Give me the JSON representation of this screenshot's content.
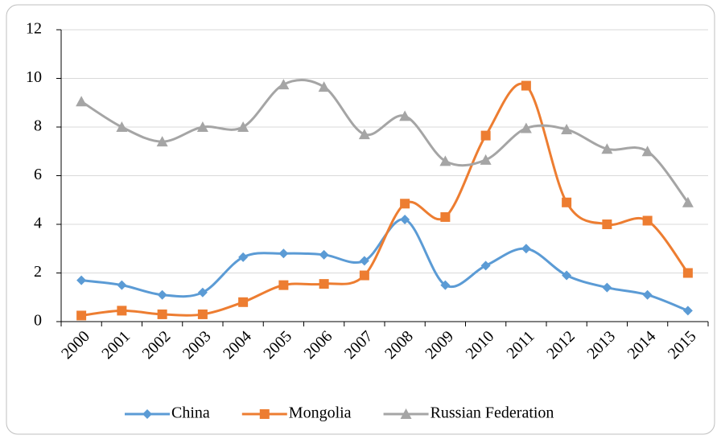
{
  "chart_data": {
    "type": "line",
    "categories": [
      "2000",
      "2001",
      "2002",
      "2003",
      "2004",
      "2005",
      "2006",
      "2007",
      "2008",
      "2009",
      "2010",
      "2011",
      "2012",
      "2013",
      "2014",
      "2015"
    ],
    "series": [
      {
        "name": "China",
        "color": "#5b9bd5",
        "marker": "diamond",
        "values": [
          1.7,
          1.5,
          1.1,
          1.2,
          2.65,
          2.8,
          2.75,
          2.5,
          4.2,
          1.5,
          2.3,
          3.0,
          1.9,
          1.4,
          1.1,
          0.45
        ]
      },
      {
        "name": "Mongolia",
        "color": "#ed7d31",
        "marker": "square",
        "values": [
          0.25,
          0.45,
          0.3,
          0.3,
          0.8,
          1.5,
          1.55,
          1.9,
          4.85,
          4.3,
          7.65,
          9.7,
          4.9,
          4.0,
          4.15,
          2.0
        ]
      },
      {
        "name": "Russian Federation",
        "color": "#a5a5a5",
        "marker": "triangle",
        "values": [
          9.05,
          8.0,
          7.4,
          8.0,
          8.0,
          9.75,
          9.65,
          7.7,
          8.45,
          6.6,
          6.65,
          7.95,
          7.9,
          7.1,
          7.0,
          4.9
        ]
      }
    ],
    "ylim": [
      0,
      12
    ],
    "yticks": [
      0,
      2,
      4,
      6,
      8,
      10,
      12
    ],
    "grid": true,
    "smooth": true,
    "legend": "bottom"
  }
}
